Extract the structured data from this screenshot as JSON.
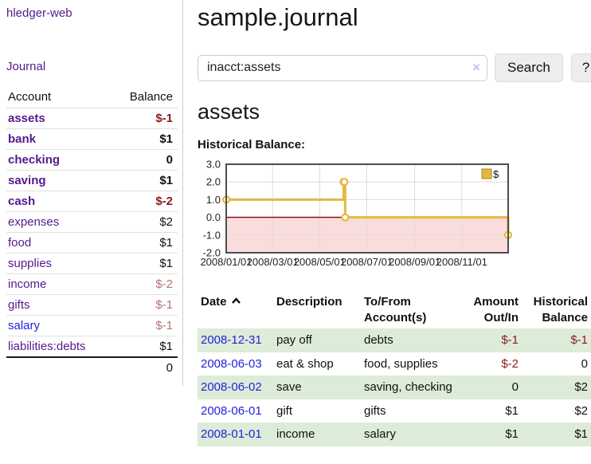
{
  "colors": {
    "purple": "#551a8b",
    "blue": "#2222dd",
    "negstrong": "#8b1a1a",
    "negsoft": "#b37272",
    "green": "#ddecd8",
    "gold": "#e3b83f"
  },
  "sidebar": {
    "brand": "hledger-web",
    "nav_journal": "Journal",
    "accounts": {
      "col_account": "Account",
      "col_balance": "Balance",
      "rows": [
        {
          "name": "assets",
          "balance": "$-1",
          "indent": 1,
          "bold": true,
          "balance_tone": "neg"
        },
        {
          "name": "bank",
          "balance": "$1",
          "indent": 2,
          "bold": true,
          "balance_tone": "pos"
        },
        {
          "name": "checking",
          "balance": "0",
          "indent": 3,
          "bold": true,
          "balance_tone": "pos"
        },
        {
          "name": "saving",
          "balance": "$1",
          "indent": 3,
          "bold": true,
          "balance_tone": "pos"
        },
        {
          "name": "cash",
          "balance": "$-2",
          "indent": 2,
          "bold": true,
          "balance_tone": "neg"
        },
        {
          "name": "expenses",
          "balance": "$2",
          "indent": 1,
          "bold": false,
          "balance_tone": "pos"
        },
        {
          "name": "food",
          "balance": "$1",
          "indent": 2,
          "bold": false,
          "balance_tone": "pos"
        },
        {
          "name": "supplies",
          "balance": "$1",
          "indent": 2,
          "bold": false,
          "balance_tone": "pos"
        },
        {
          "name": "income",
          "balance": "$-2",
          "indent": 1,
          "bold": false,
          "balance_tone": "neg-soft"
        },
        {
          "name": "gifts",
          "balance": "$-1",
          "indent": 2,
          "bold": false,
          "balance_tone": "neg-soft"
        },
        {
          "name": "salary",
          "balance": "$-1",
          "indent": 2,
          "bold": false,
          "balance_tone": "neg-soft",
          "link_style": "blue"
        },
        {
          "name": "liabilities:debts",
          "balance": "$1",
          "indent": 1,
          "bold": false,
          "balance_tone": "pos"
        }
      ],
      "total": "0"
    }
  },
  "main": {
    "title": "sample.journal",
    "search": {
      "value": "inacct:assets",
      "clear_icon": "×",
      "button": "Search",
      "help": "?"
    },
    "account_heading": "assets",
    "chart_title": "Historical Balance:",
    "register": {
      "columns": [
        "Date",
        "Description",
        "To/From Account(s)",
        "Amount Out/In",
        "Historical Balance"
      ],
      "sort": "date ascending",
      "rows": [
        {
          "date": "2008-12-31",
          "description": "pay off",
          "accounts": "debts",
          "amount": "$-1",
          "balance": "$-1"
        },
        {
          "date": "2008-06-03",
          "description": "eat & shop",
          "accounts": "food, supplies",
          "amount": "$-2",
          "balance": "0"
        },
        {
          "date": "2008-06-02",
          "description": "save",
          "accounts": "saving, checking",
          "amount": "0",
          "balance": "$2"
        },
        {
          "date": "2008-06-01",
          "description": "gift",
          "accounts": "gifts",
          "amount": "$1",
          "balance": "$2"
        },
        {
          "date": "2008-01-01",
          "description": "income",
          "accounts": "salary",
          "amount": "$1",
          "balance": "$1"
        }
      ]
    }
  },
  "chart_data": {
    "type": "line",
    "title": "Historical Balance:",
    "step": true,
    "x_range": [
      "2008-01-01",
      "2008-12-31"
    ],
    "x_ticks": [
      {
        "label": "2008/01/01",
        "date": "2008-01-01"
      },
      {
        "label": "2008/03/01",
        "date": "2008-03-01"
      },
      {
        "label": "2008/05/01",
        "date": "2008-05-01"
      },
      {
        "label": "2008/07/01",
        "date": "2008-07-01"
      },
      {
        "label": "2008/09/01",
        "date": "2008-09-01"
      },
      {
        "label": "2008/11/01",
        "date": "2008-11-01"
      }
    ],
    "y_ticks": [
      "3.0",
      "2.0",
      "1.0",
      "0.0",
      "-1.0",
      "-2.0"
    ],
    "ylim": [
      -2,
      3
    ],
    "grid": true,
    "legend_position": "top-right",
    "legend": [
      {
        "label": "$",
        "color": "#e3b83f"
      }
    ],
    "negative_region_color": "#fbdcdc",
    "zero_line_color": "#8b0000",
    "series": [
      {
        "name": "$",
        "color": "#e3b83f",
        "points": [
          {
            "date": "2008-01-01",
            "value": 1
          },
          {
            "date": "2008-06-01",
            "value": 2
          },
          {
            "date": "2008-06-02",
            "value": 2
          },
          {
            "date": "2008-06-03",
            "value": 0
          },
          {
            "date": "2008-12-31",
            "value": -1
          }
        ]
      }
    ]
  }
}
